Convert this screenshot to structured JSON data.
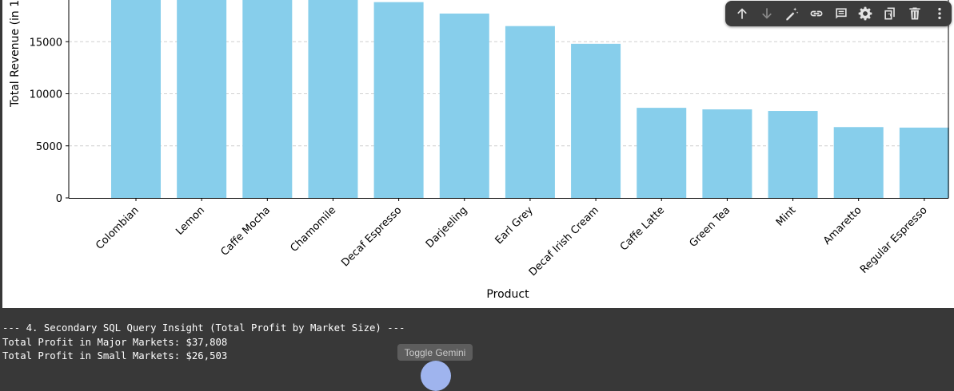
{
  "chart_data": {
    "type": "bar",
    "xlabel": "Product",
    "ylabel": "Total Revenue (in 1",
    "categories": [
      "Colombian",
      "Lemon",
      "Caffe Mocha",
      "Chamomile",
      "Decaf Espresso",
      "Darjeeling",
      "Earl Grey",
      "Decaf Irish Cream",
      "Caffe Latte",
      "Green Tea",
      "Mint",
      "Amaretto",
      "Regular Espresso"
    ],
    "values": [
      19500,
      19500,
      19500,
      19500,
      18800,
      17700,
      16500,
      14800,
      8650,
      8500,
      8350,
      6800,
      6750
    ],
    "yticks": [
      0,
      5000,
      10000,
      15000
    ],
    "ylim": [
      0,
      19200
    ],
    "bar_color": "#87ceeb",
    "grid": "horizontal dashed"
  },
  "toolbar": {
    "buttons": [
      "arrow-up-icon",
      "arrow-down-icon",
      "magic-wand-icon",
      "link-icon",
      "comment-icon",
      "gear-icon",
      "mirror-cell-icon",
      "trash-icon",
      "more-vert-icon"
    ]
  },
  "output": {
    "lines": [
      "--- 4. Secondary SQL Query Insight (Total Profit by Market Size) ---",
      "Total Profit in Major Markets: $37,808",
      "Total Profit in Small Markets: $26,503"
    ]
  },
  "gemini": {
    "toggle_label": "Toggle Gemini"
  },
  "colors": {
    "toolbar_icon": "#e3e3e3",
    "background": "#383838"
  }
}
